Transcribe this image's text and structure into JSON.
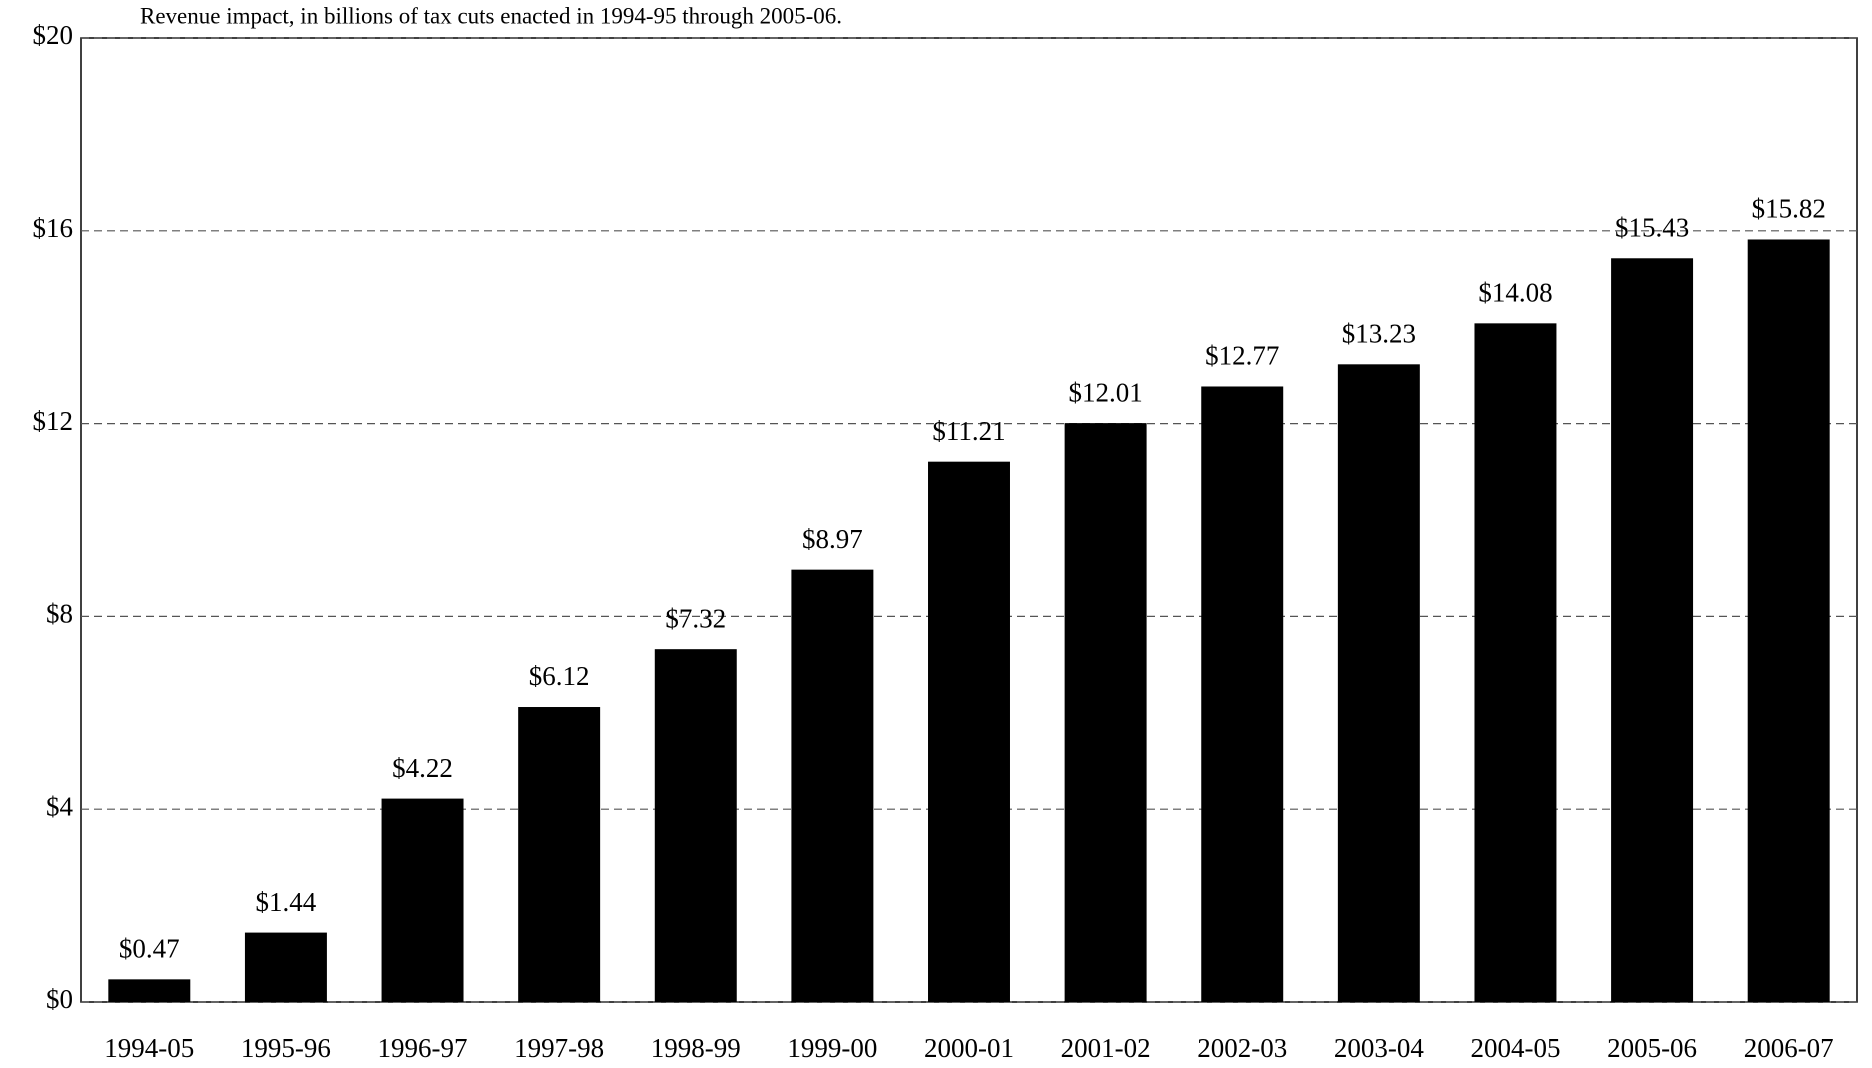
{
  "chart_data": {
    "type": "bar",
    "subtitle": "Revenue impact, in billions of tax cuts enacted in 1994-95 through 2005-06.",
    "categories": [
      "1994-05",
      "1995-96",
      "1996-97",
      "1997-98",
      "1998-99",
      "1999-00",
      "2000-01",
      "2001-02",
      "2002-03",
      "2003-04",
      "2004-05",
      "2005-06",
      "2006-07"
    ],
    "values": [
      0.47,
      1.44,
      4.22,
      6.12,
      7.32,
      8.97,
      11.21,
      12.01,
      12.77,
      13.23,
      14.08,
      15.43,
      15.82
    ],
    "value_labels": [
      "$0.47",
      "$1.44",
      "$4.22",
      "$6.12",
      "$7.32",
      "$8.97",
      "$11.21",
      "$12.01",
      "$12.77",
      "$13.23",
      "$14.08",
      "$15.43",
      "$15.82"
    ],
    "color": "#000000",
    "ylim": [
      0,
      20
    ],
    "yticks": [
      {
        "value": 0,
        "label": "$0"
      },
      {
        "value": 4,
        "label": "$4"
      },
      {
        "value": 8,
        "label": "$8"
      },
      {
        "value": 12,
        "label": "$12"
      },
      {
        "value": 16,
        "label": "$16"
      },
      {
        "value": 20,
        "label": "$20"
      }
    ],
    "grid": true
  }
}
